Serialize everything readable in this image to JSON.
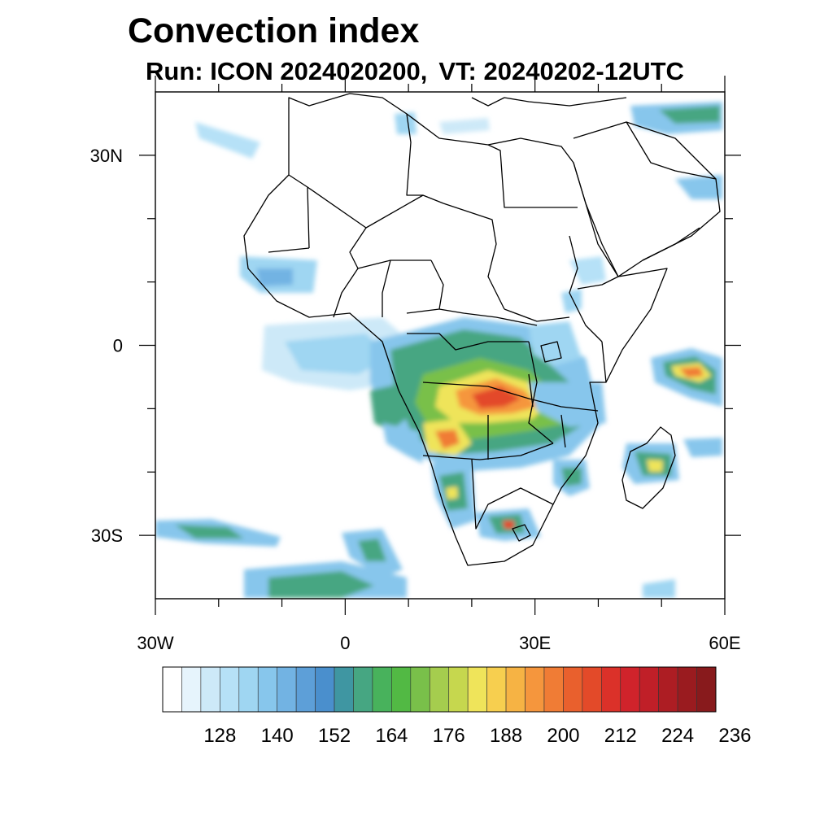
{
  "title": "Convection index",
  "subtitle": {
    "run_label": "Run:",
    "run_value": "ICON 2024020200,",
    "vt_label": "VT:",
    "vt_value": "20240202-12UTC"
  },
  "map": {
    "extent": {
      "lon": [
        -30,
        60
      ],
      "lat": [
        -40,
        40
      ]
    },
    "x_ticks": [
      {
        "value": -30,
        "label": "30W"
      },
      {
        "value": 0,
        "label": "0"
      },
      {
        "value": 30,
        "label": "30E"
      },
      {
        "value": 60,
        "label": "60E"
      }
    ],
    "y_ticks": [
      {
        "value": 30,
        "label": "30N"
      },
      {
        "value": 0,
        "label": "0"
      },
      {
        "value": -30,
        "label": "30S"
      }
    ],
    "minor_x": [
      -20,
      -10,
      10,
      20,
      40,
      50
    ],
    "minor_y": [
      20,
      10,
      -10,
      -20
    ]
  },
  "colorbar": {
    "colors": [
      "#ffffff",
      "#e6f4fc",
      "#cde9f8",
      "#b6e1f7",
      "#9fd6f2",
      "#87c6ec",
      "#72b3e3",
      "#5d9fd8",
      "#4a8fcd",
      "#3f96a2",
      "#46a682",
      "#48b25c",
      "#52b944",
      "#79c04a",
      "#a5cd4e",
      "#c6d74e",
      "#efe45a",
      "#f7cf4f",
      "#f6b344",
      "#f5963d",
      "#f07c35",
      "#e9602d",
      "#e34a29",
      "#db3129",
      "#d0232b",
      "#c01f28",
      "#ad1d23",
      "#9a1b1f",
      "#881a1c"
    ],
    "labels": [
      "128",
      "140",
      "152",
      "164",
      "176",
      "188",
      "200",
      "212",
      "224",
      "236"
    ]
  }
}
